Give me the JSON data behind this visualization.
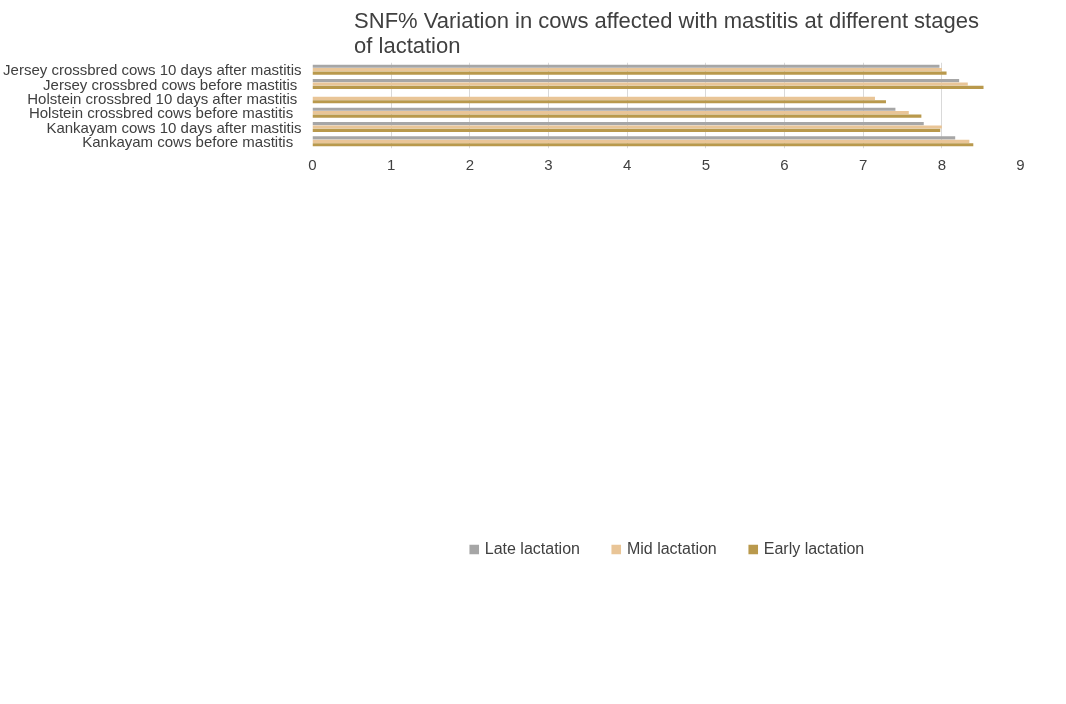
{
  "chart_data": {
    "type": "bar",
    "orientation": "horizontal",
    "title": "SNF% Variation in cows affected with mastitis at different stages of lactation",
    "categories": [
      "Jersey crossbred cows 10 days after mastitis",
      "Jersey crossbred cows  before mastitis",
      "Holstein  crossbred 10 days after mastitis",
      "Holstein crossbred   cows before mastitis",
      "Kankayam cows 10 days after mastitis",
      "Kankayam  cows  before mastitis"
    ],
    "series": [
      {
        "name": "Late lactation",
        "color": "#a6a6a6",
        "values": [
          7.97,
          8.22,
          null,
          7.41,
          7.77,
          8.17
        ]
      },
      {
        "name": "Mid lactation",
        "color": "#e9c597",
        "values": [
          8.0,
          8.33,
          7.15,
          7.58,
          8.0,
          8.35
        ]
      },
      {
        "name": "Early lactation",
        "color": "#b9994c",
        "values": [
          8.06,
          8.53,
          7.29,
          7.74,
          7.98,
          8.4
        ]
      }
    ],
    "xlim": [
      0,
      9
    ],
    "xticks": [
      0,
      1,
      2,
      3,
      4,
      5,
      6,
      7,
      8,
      9
    ],
    "grid": "x",
    "legend": "bottom"
  }
}
